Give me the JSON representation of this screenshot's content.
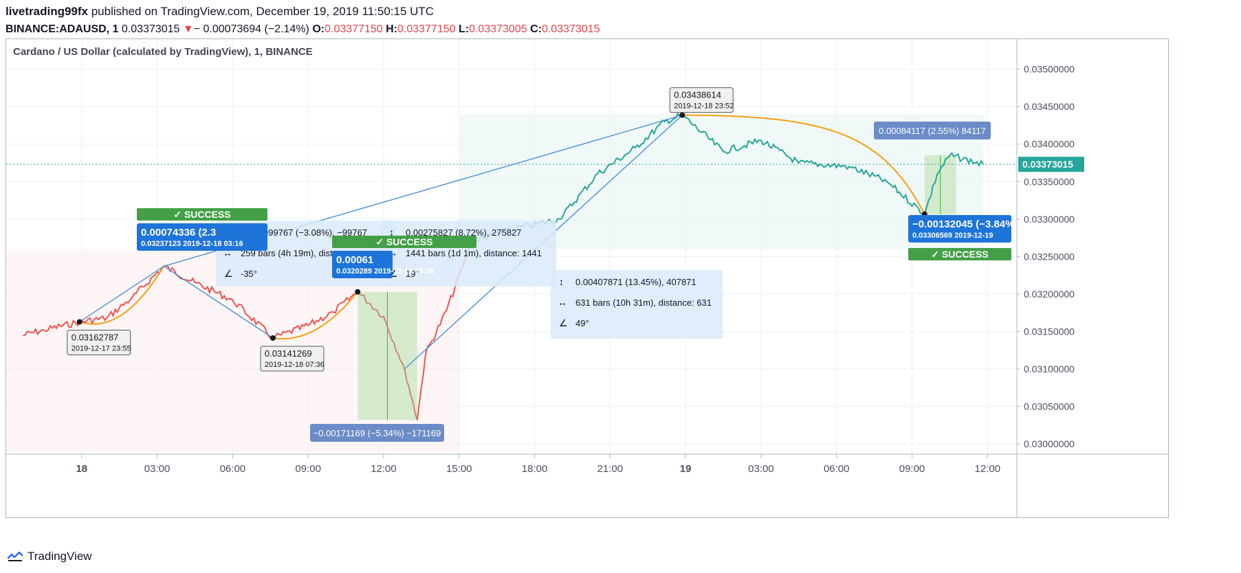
{
  "header": {
    "publisher": "livetrading99fx",
    "publish_text": " published on TradingView.com, December 19, 2019 11:50:15 UTC",
    "symbol": "BINANCE:ADAUSD, 1",
    "last": "0.03373015",
    "change": "− 0.00073694 (−2.14%)",
    "o_label": "O:",
    "o_value": "0.03377150",
    "h_label": "H:",
    "h_value": "0.03377150",
    "l_label": "L:",
    "l_value": "0.03373005",
    "c_label": "C:",
    "c_value": "0.03373015"
  },
  "chart_title": "Cardano / US Dollar (calculated by TradingView), 1, BINANCE",
  "footer": {
    "brand": "TradingView"
  },
  "colors": {
    "bear": "#ef5350",
    "bull": "#26a69a",
    "fade": "#c98a7a",
    "pattern": "#f59e0b",
    "trendline": "#4a90d9",
    "success": "#43a047",
    "label_blue": "#1e74d8",
    "label_steel": "#6b8cc7",
    "grid": "#eef0f3"
  },
  "chart_data": {
    "type": "line",
    "title": "Cardano / US Dollar (calculated by TradingView), 1, BINANCE",
    "y_ticks": [
      "0.03500000",
      "0.03450000",
      "0.03400000",
      "0.03350000",
      "0.03300000",
      "0.03250000",
      "0.03200000",
      "0.03150000",
      "0.03100000",
      "0.03050000",
      "0.03000000"
    ],
    "x_ticks": [
      "18",
      "03:00",
      "06:00",
      "09:00",
      "12:00",
      "15:00",
      "18:00",
      "21:00",
      "19",
      "03:00",
      "06:00",
      "09:00",
      "12:00"
    ],
    "ylim": [
      0.0299,
      0.0354
    ],
    "last_price_label": "0.03373015",
    "price_path": [
      [
        "2019-12-17 21:40",
        0.03145
      ],
      [
        "2019-12-17 22:30",
        0.03152
      ],
      [
        "2019-12-17 23:55",
        0.03162787
      ],
      [
        "2019-12-18 01:00",
        0.03168
      ],
      [
        "2019-12-18 02:00",
        0.03195
      ],
      [
        "2019-12-18 03:16",
        0.03237123
      ],
      [
        "2019-12-18 04:30",
        0.03215
      ],
      [
        "2019-12-18 06:00",
        0.03192
      ],
      [
        "2019-12-18 07:36",
        0.03141269
      ],
      [
        "2019-12-18 09:00",
        0.03158
      ],
      [
        "2019-12-18 10:00",
        0.03176
      ],
      [
        "2019-12-18 10:58",
        0.0320289
      ],
      [
        "2019-12-18 12:00",
        0.0317
      ],
      [
        "2019-12-18 12:50",
        0.031
      ],
      [
        "2019-12-18 13:20",
        0.03032
      ],
      [
        "2019-12-18 13:40",
        0.0312
      ],
      [
        "2019-12-18 14:30",
        0.03178
      ],
      [
        "2019-12-18 15:30",
        0.0327
      ],
      [
        "2019-12-18 17:00",
        0.03285
      ],
      [
        "2019-12-18 19:00",
        0.033
      ],
      [
        "2019-12-18 20:30",
        0.0336
      ],
      [
        "2019-12-18 22:00",
        0.03395
      ],
      [
        "2019-12-18 23:10",
        0.0343
      ],
      [
        "2019-12-18 23:52",
        0.03438614
      ],
      [
        "2019-12-19 01:30",
        0.0339
      ],
      [
        "2019-12-19 03:00",
        0.03405
      ],
      [
        "2019-12-19 04:30",
        0.03375
      ],
      [
        "2019-12-19 06:30",
        0.0337
      ],
      [
        "2019-12-19 08:00",
        0.0335
      ],
      [
        "2019-12-19 09:30",
        0.03306569
      ],
      [
        "2019-12-19 10:00",
        0.0336
      ],
      [
        "2019-12-19 10:30",
        0.03385
      ],
      [
        "2019-12-19 11:50",
        0.03373015
      ]
    ],
    "pivots": [
      {
        "price": "0.03162787",
        "time": "2019-12-17 23:55"
      },
      {
        "price": "0.03141269",
        "time": "2019-12-18 07:36"
      },
      {
        "price": "0.03438614",
        "time": "2019-12-18 23:52"
      }
    ],
    "measurements": [
      {
        "change": "−0.00099767 (−3.08%), −99767",
        "bars": "259 bars (4h 19m), dist",
        "angle": "-35°"
      },
      {
        "change": "0.00275827 (8.72%), 275827",
        "bars": "1441 bars (1d 1m), distance: 1441",
        "angle": "19°"
      },
      {
        "change": "0.00407871 (13.45%), 407871",
        "bars": "631 bars (10h 31m), distance: 631",
        "angle": "49°"
      }
    ],
    "trades": [
      {
        "label": "0.00074336 (2.3",
        "price": "0.03237123",
        "date": "2019-12-18",
        "time": "03:16",
        "status": "SUCCESS"
      },
      {
        "label": "0.00061",
        "price": "0.0320289",
        "date": "2019-12-18",
        "time": "10:58",
        "status": "SUCCESS"
      },
      {
        "label": "−0.00132045 (−3.84%)",
        "price": "0.03306569",
        "date": "2019-12-19",
        "time": "",
        "status": "SUCCESS"
      }
    ],
    "ranges": [
      {
        "label": "−0.00171169 (−5.34%) −171169"
      },
      {
        "label": "0.00084117 (2.55%) 84117"
      }
    ]
  }
}
